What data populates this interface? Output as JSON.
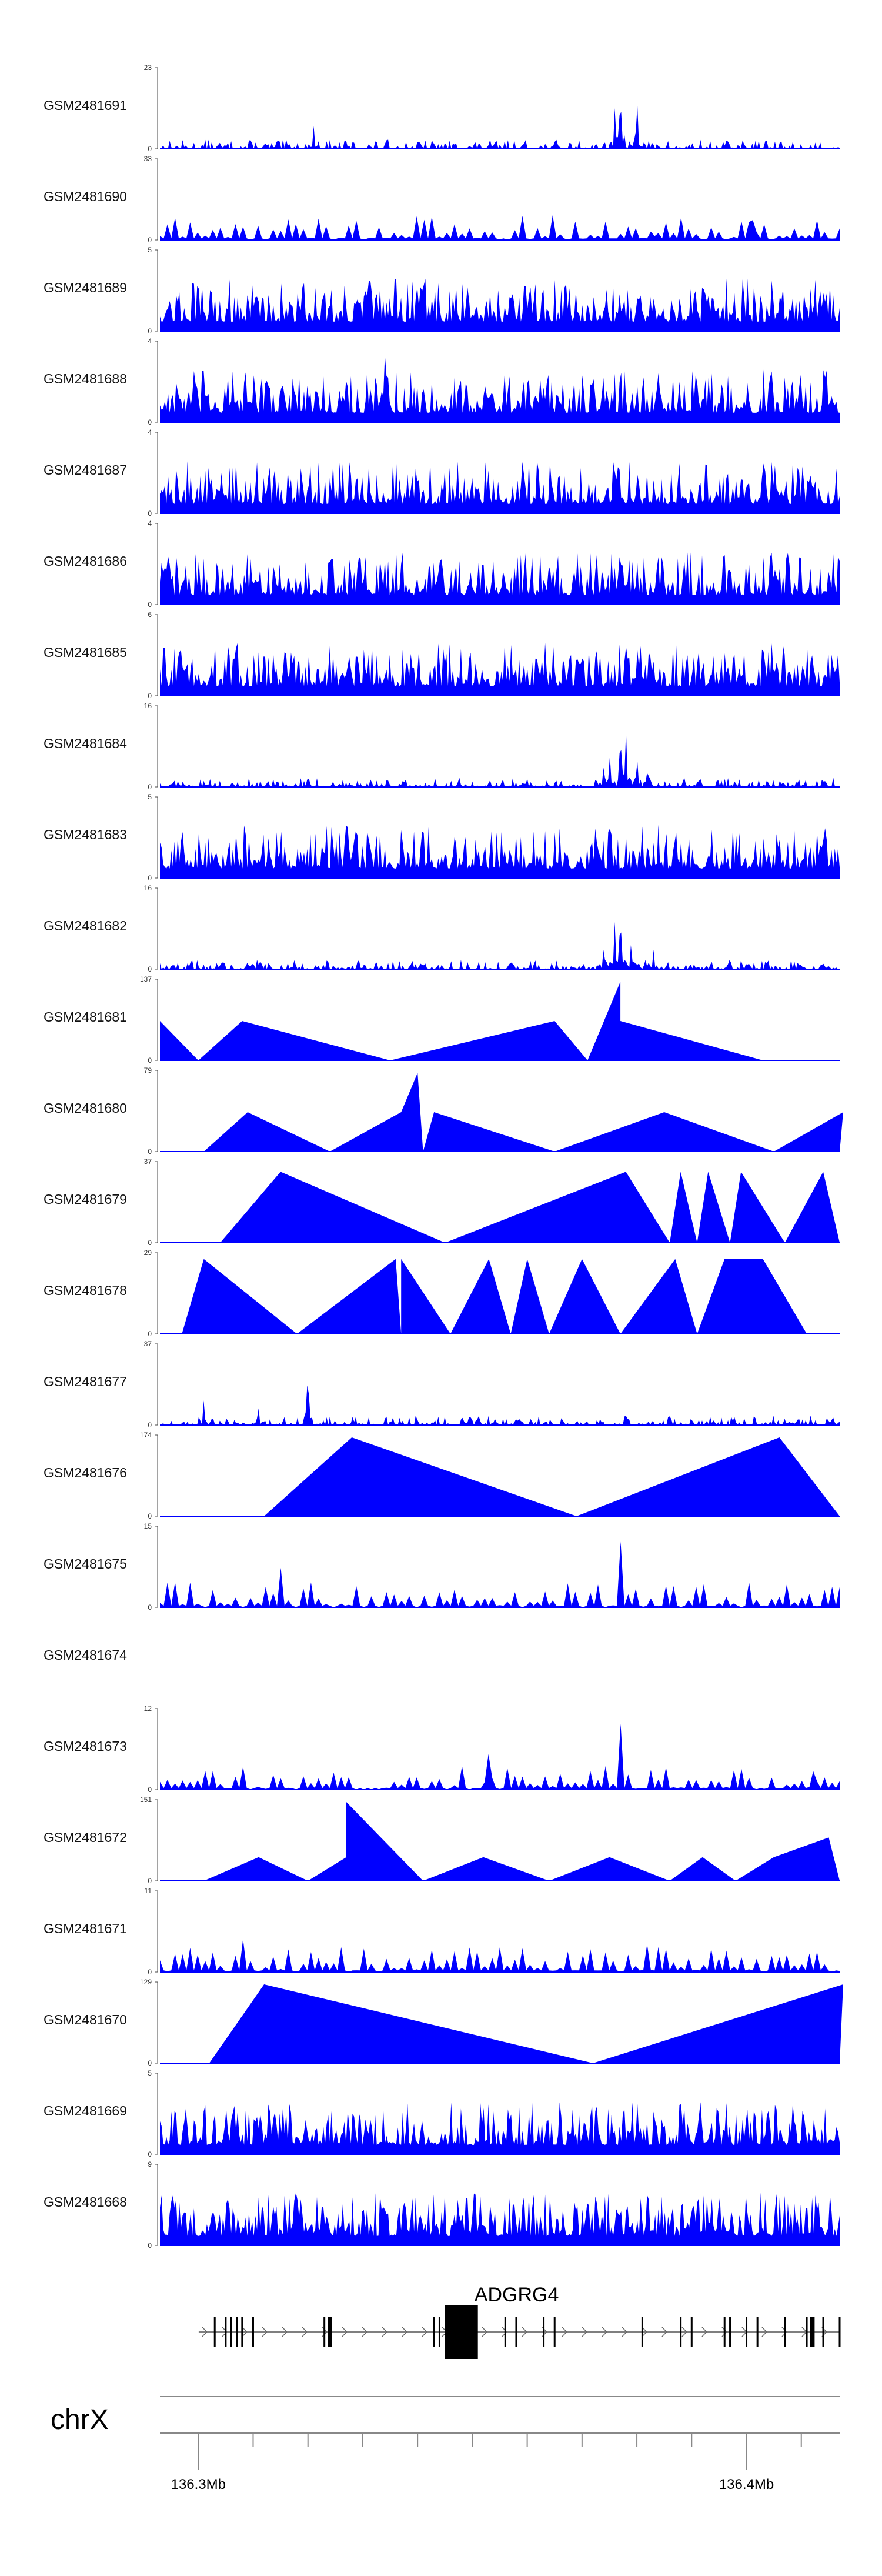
{
  "colors": {
    "signal": "#0000ff",
    "gene": "#000000",
    "axis": "#444444"
  },
  "chart_data": {
    "type": "area",
    "x_domain": [
      136.293,
      136.417
    ],
    "x_unit": "Mb",
    "tracks": [
      {
        "name": "GSM2481691",
        "ymax": 23,
        "style": "noise",
        "peaks": [
          [
            136.321,
            0.35
          ],
          [
            136.377,
            1.0
          ],
          [
            136.38,
            0.85
          ],
          [
            136.376,
            0.6
          ]
        ]
      },
      {
        "name": "GSM2481690",
        "ymax": 33,
        "style": "spikes",
        "peaks": [
          [
            136.325,
            0.9
          ],
          [
            136.358,
            1.0
          ],
          [
            136.383,
            0.55
          ],
          [
            136.401,
            0.6
          ]
        ]
      },
      {
        "name": "GSM2481689",
        "ymax": 5,
        "style": "dense",
        "peaks": []
      },
      {
        "name": "GSM2481688",
        "ymax": 4,
        "style": "dense",
        "peaks": [
          [
            136.334,
            1.0
          ]
        ]
      },
      {
        "name": "GSM2481687",
        "ymax": 4,
        "style": "dense",
        "peaks": []
      },
      {
        "name": "GSM2481686",
        "ymax": 4,
        "style": "dense",
        "peaks": []
      },
      {
        "name": "GSM2481685",
        "ymax": 6,
        "style": "dense",
        "peaks": []
      },
      {
        "name": "GSM2481684",
        "ymax": 16,
        "style": "noise",
        "peaks": [
          [
            136.377,
            1.0
          ],
          [
            136.378,
            0.8
          ],
          [
            136.375,
            0.55
          ],
          [
            136.374,
            0.4
          ],
          [
            136.38,
            0.5
          ],
          [
            136.382,
            0.35
          ]
        ]
      },
      {
        "name": "GSM2481683",
        "ymax": 5,
        "style": "dense",
        "peaks": [
          [
            136.384,
            0.9
          ]
        ]
      },
      {
        "name": "GSM2481682",
        "ymax": 16,
        "style": "noise",
        "peaks": [
          [
            136.377,
            1.0
          ],
          [
            136.376,
            0.7
          ],
          [
            136.374,
            0.4
          ],
          [
            136.379,
            0.45
          ],
          [
            136.383,
            0.3
          ]
        ]
      },
      {
        "name": "GSM2481681",
        "ymax": 137,
        "style": "triangles",
        "verts": [
          [
            136.293,
            0.5
          ],
          [
            136.3,
            0
          ],
          [
            136.308,
            0.5
          ],
          [
            136.335,
            0
          ],
          [
            136.365,
            0.5
          ],
          [
            136.371,
            0
          ],
          [
            136.377,
            1.0
          ],
          [
            136.377,
            0.5
          ],
          [
            136.403,
            0
          ]
        ]
      },
      {
        "name": "GSM2481680",
        "ymax": 79,
        "style": "triangles",
        "verts": [
          [
            136.301,
            0
          ],
          [
            136.309,
            0.5
          ],
          [
            136.324,
            0
          ],
          [
            136.337,
            0.5
          ],
          [
            136.34,
            1.0
          ],
          [
            136.341,
            0
          ],
          [
            136.343,
            0.5
          ],
          [
            136.365,
            0
          ],
          [
            136.385,
            0.5
          ],
          [
            136.405,
            0
          ],
          [
            136.421,
            0.5
          ],
          [
            136.417,
            0
          ]
        ]
      },
      {
        "name": "GSM2481679",
        "ymax": 37,
        "style": "triangles",
        "verts": [
          [
            136.304,
            0
          ],
          [
            136.315,
            0.9
          ],
          [
            136.345,
            0
          ],
          [
            136.378,
            0.9
          ],
          [
            136.386,
            0
          ],
          [
            136.388,
            0.9
          ],
          [
            136.391,
            0
          ],
          [
            136.393,
            0.9
          ],
          [
            136.397,
            0
          ],
          [
            136.399,
            0.9
          ],
          [
            136.407,
            0
          ],
          [
            136.414,
            0.9
          ],
          [
            136.417,
            0
          ]
        ]
      },
      {
        "name": "GSM2481678",
        "ymax": 29,
        "style": "triangles",
        "verts": [
          [
            136.297,
            0
          ],
          [
            136.301,
            0.95
          ],
          [
            136.318,
            0
          ],
          [
            136.336,
            0.95
          ],
          [
            136.337,
            0
          ],
          [
            136.337,
            0.95
          ],
          [
            136.346,
            0
          ],
          [
            136.353,
            0.95
          ],
          [
            136.357,
            0
          ],
          [
            136.36,
            0.95
          ],
          [
            136.364,
            0
          ],
          [
            136.37,
            0.95
          ],
          [
            136.377,
            0
          ],
          [
            136.387,
            0.95
          ],
          [
            136.391,
            0
          ],
          [
            136.396,
            0.95
          ],
          [
            136.403,
            0.95
          ],
          [
            136.411,
            0
          ]
        ]
      },
      {
        "name": "GSM2481677",
        "ymax": 37,
        "style": "noise",
        "peaks": [
          [
            136.32,
            1.0
          ],
          [
            136.301,
            0.35
          ],
          [
            136.311,
            0.22
          ]
        ]
      },
      {
        "name": "GSM2481676",
        "ymax": 174,
        "style": "triangles",
        "verts": [
          [
            136.312,
            0
          ],
          [
            136.328,
            1.0
          ],
          [
            136.369,
            0
          ],
          [
            136.406,
            1.0
          ],
          [
            136.417,
            0
          ]
        ]
      },
      {
        "name": "GSM2481675",
        "ymax": 15,
        "style": "spikes",
        "peaks": [
          [
            136.377,
            1.0
          ],
          [
            136.315,
            0.6
          ],
          [
            136.334,
            0.5
          ],
          [
            136.392,
            0.5
          ]
        ]
      },
      {
        "name": "GSM2481674",
        "ymax": null,
        "style": "empty",
        "peaks": []
      },
      {
        "name": "GSM2481673",
        "ymax": 12,
        "style": "spikes",
        "peaks": [
          [
            136.377,
            1.0
          ],
          [
            136.308,
            0.7
          ],
          [
            136.412,
            0.7
          ],
          [
            136.353,
            0.6
          ]
        ]
      },
      {
        "name": "GSM2481672",
        "ymax": 151,
        "style": "triangles",
        "verts": [
          [
            136.301,
            0
          ],
          [
            136.311,
            0.3
          ],
          [
            136.32,
            0
          ],
          [
            136.327,
            0.3
          ],
          [
            136.327,
            1.0
          ],
          [
            136.341,
            0
          ],
          [
            136.352,
            0.3
          ],
          [
            136.364,
            0
          ],
          [
            136.375,
            0.3
          ],
          [
            136.386,
            0
          ],
          [
            136.392,
            0.3
          ],
          [
            136.398,
            0
          ],
          [
            136.405,
            0.3
          ],
          [
            136.415,
            0.55
          ],
          [
            136.417,
            0
          ]
        ]
      },
      {
        "name": "GSM2481671",
        "ymax": 11,
        "style": "spikes",
        "peaks": [
          [
            136.308,
            1.0
          ],
          [
            136.382,
            0.7
          ],
          [
            136.359,
            0.6
          ],
          [
            136.409,
            0.5
          ]
        ]
      },
      {
        "name": "GSM2481670",
        "ymax": 129,
        "style": "triangles",
        "verts": [
          [
            136.302,
            0
          ],
          [
            136.312,
            1.0
          ],
          [
            136.372,
            0
          ],
          [
            136.418,
            1.0
          ],
          [
            136.417,
            0
          ]
        ]
      },
      {
        "name": "GSM2481669",
        "ymax": 5,
        "style": "dense",
        "peaks": [
          [
            136.38,
            1.0
          ]
        ]
      },
      {
        "name": "GSM2481668",
        "ymax": 9,
        "style": "dense",
        "peaks": [
          [
            136.413,
            0.9
          ],
          [
            136.354,
            0.75
          ]
        ]
      }
    ],
    "gene": {
      "name": "ADGRG4",
      "strand": "+",
      "start": 136.302,
      "end": 136.417,
      "exons": [
        136.303,
        136.305,
        136.306,
        136.307,
        136.308,
        136.31,
        136.323,
        136.343,
        136.344,
        136.356,
        136.358,
        136.363,
        136.365,
        136.381,
        136.388,
        136.39,
        136.396,
        136.397,
        136.4,
        136.402,
        136.407,
        136.411,
        136.414,
        136.417
      ],
      "large_exon": [
        136.345,
        136.351
      ],
      "thick_exons": [
        136.324,
        136.412
      ]
    },
    "chromosome": "chrX",
    "axis_ticks": [
      136.3,
      136.31,
      136.32,
      136.33,
      136.34,
      136.35,
      136.36,
      136.37,
      136.38,
      136.39,
      136.4,
      136.41
    ],
    "axis_labels": [
      {
        "value": 136.3,
        "text": "136.3Mb"
      },
      {
        "value": 136.4,
        "text": "136.4Mb"
      }
    ]
  }
}
